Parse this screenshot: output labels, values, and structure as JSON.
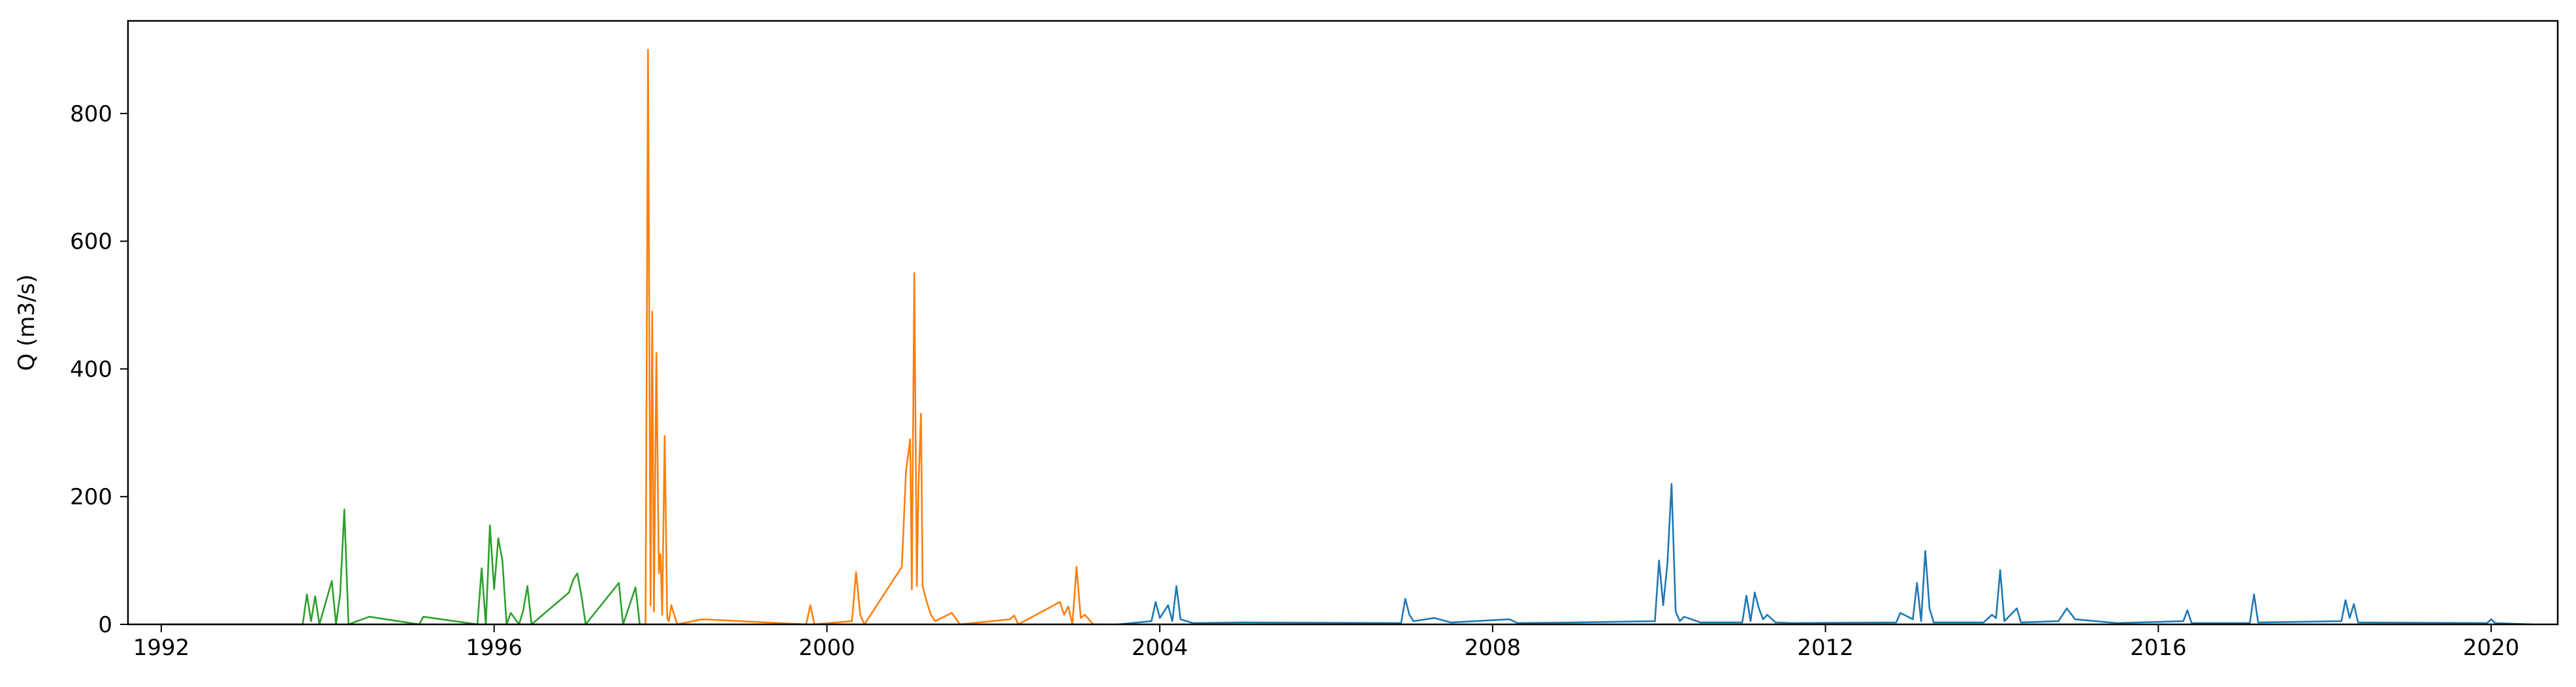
{
  "chart_data": {
    "type": "line",
    "title": "",
    "xlabel": "",
    "ylabel": "Q (m3/s)",
    "xlim": [
      1991.6,
      2020.8
    ],
    "ylim": [
      0,
      945
    ],
    "x_ticks": [
      "1992",
      "1996",
      "2000",
      "2004",
      "2008",
      "2012",
      "2016",
      "2020"
    ],
    "x_tick_values": [
      1992,
      1996,
      2000,
      2004,
      2008,
      2012,
      2016,
      2020
    ],
    "y_ticks": [
      "0",
      "200",
      "400",
      "600",
      "800"
    ],
    "y_tick_values": [
      0,
      200,
      400,
      600,
      800
    ],
    "grid": false,
    "legend": "none",
    "series": [
      {
        "color": "#2ca02c",
        "x": [
          1992.0,
          1993.7,
          1993.75,
          1993.8,
          1993.85,
          1993.9,
          1994.05,
          1994.1,
          1994.15,
          1994.2,
          1994.25,
          1994.5,
          1995.1,
          1995.15,
          1995.8,
          1995.85,
          1995.9,
          1995.95,
          1996.0,
          1996.05,
          1996.1,
          1996.15,
          1996.2,
          1996.3,
          1996.35,
          1996.4,
          1996.45,
          1996.9,
          1996.95,
          1997.0,
          1997.05,
          1997.1,
          1997.5,
          1997.55,
          1997.7,
          1997.75,
          1997.82
        ],
        "y": [
          0,
          0,
          47,
          5,
          44,
          0,
          68,
          0,
          48,
          180,
          0,
          12,
          0,
          12,
          0,
          88,
          0,
          155,
          55,
          135,
          100,
          0,
          18,
          0,
          22,
          60,
          0,
          50,
          70,
          80,
          45,
          0,
          65,
          0,
          58,
          0,
          0
        ]
      },
      {
        "color": "#ff7f0e",
        "x": [
          1997.82,
          1997.85,
          1997.88,
          1997.9,
          1997.92,
          1997.95,
          1997.98,
          1998.0,
          1998.02,
          1998.05,
          1998.08,
          1998.1,
          1998.13,
          1998.2,
          1998.5,
          1999.75,
          1999.8,
          1999.85,
          2000.3,
          2000.35,
          2000.4,
          2000.45,
          2000.9,
          2000.95,
          2001.0,
          2001.02,
          2001.05,
          2001.08,
          2001.1,
          2001.13,
          2001.15,
          2001.2,
          2001.25,
          2001.3,
          2001.5,
          2001.6,
          2002.2,
          2002.25,
          2002.3,
          2002.8,
          2002.85,
          2002.9,
          2002.95,
          2003.0,
          2003.05,
          2003.1,
          2003.2,
          2003.3
        ],
        "y": [
          0,
          900,
          30,
          490,
          20,
          425,
          80,
          110,
          15,
          295,
          10,
          5,
          30,
          0,
          8,
          0,
          30,
          0,
          5,
          82,
          15,
          0,
          90,
          240,
          290,
          55,
          550,
          60,
          215,
          330,
          60,
          35,
          15,
          5,
          18,
          0,
          8,
          14,
          0,
          35,
          15,
          28,
          0,
          90,
          10,
          15,
          0,
          0
        ]
      },
      {
        "color": "#1f77b4",
        "x": [
          2003.5,
          2003.9,
          2003.95,
          2004.0,
          2004.1,
          2004.15,
          2004.2,
          2004.25,
          2004.4,
          2005.0,
          2006.9,
          2006.95,
          2007.0,
          2007.05,
          2007.3,
          2007.5,
          2008.2,
          2008.3,
          2009.0,
          2009.95,
          2010.0,
          2010.05,
          2010.1,
          2010.15,
          2010.2,
          2010.25,
          2010.3,
          2010.5,
          2011.0,
          2011.05,
          2011.1,
          2011.15,
          2011.2,
          2011.25,
          2011.3,
          2011.4,
          2011.6,
          2012.85,
          2012.9,
          2013.05,
          2013.1,
          2013.15,
          2013.2,
          2013.25,
          2013.3,
          2013.9,
          2014.0,
          2014.05,
          2014.1,
          2014.15,
          2014.3,
          2014.35,
          2014.8,
          2014.85,
          2014.9,
          2015.0,
          2015.5,
          2016.3,
          2016.35,
          2016.4,
          2017.1,
          2017.15,
          2017.2,
          2018.2,
          2018.25,
          2018.3,
          2018.35,
          2018.4,
          2019.95,
          2020.0,
          2020.05,
          2020.5
        ],
        "y": [
          0,
          5,
          35,
          10,
          30,
          5,
          60,
          8,
          2,
          3,
          2,
          40,
          15,
          5,
          10,
          3,
          8,
          2,
          3,
          5,
          100,
          30,
          95,
          220,
          20,
          5,
          12,
          3,
          3,
          45,
          5,
          50,
          25,
          8,
          15,
          3,
          2,
          3,
          18,
          8,
          65,
          5,
          115,
          25,
          3,
          3,
          15,
          10,
          85,
          5,
          25,
          3,
          5,
          15,
          25,
          8,
          2,
          5,
          22,
          2,
          2,
          47,
          3,
          5,
          38,
          10,
          32,
          3,
          2,
          8,
          2,
          0
        ]
      }
    ]
  }
}
